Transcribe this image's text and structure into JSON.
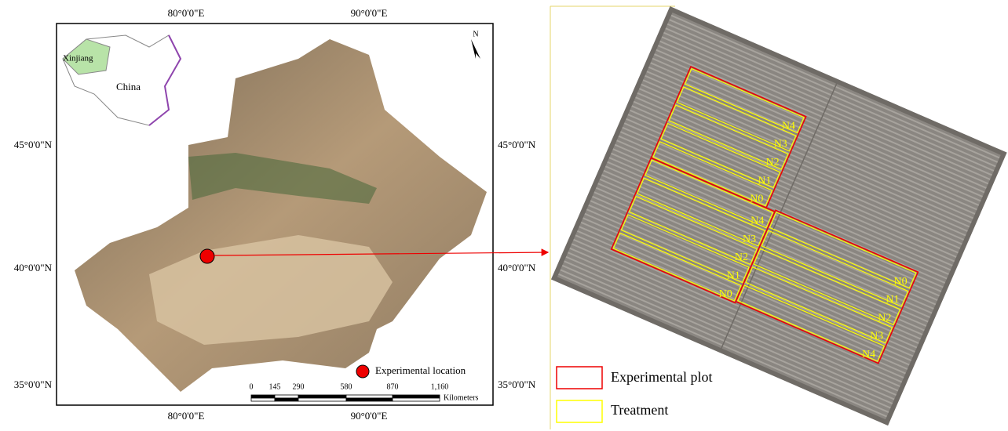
{
  "map": {
    "lon_labels": [
      "80°0'0\"E",
      "90°0'0\"E"
    ],
    "lat_labels": [
      "45°0'0\"N",
      "40°0'0\"N",
      "35°0'0\"N"
    ],
    "north": "N",
    "inset": {
      "region": "Xinjiang",
      "country": "China"
    },
    "legend": "Experimental location",
    "scale": {
      "ticks": [
        "0",
        "145",
        "290",
        "580",
        "870",
        "1,160"
      ],
      "unit": "Kilometers"
    }
  },
  "field": {
    "plots": [
      {
        "labels": [
          "N4",
          "N3",
          "N2",
          "N1",
          "N0"
        ]
      },
      {
        "labels": [
          "N4",
          "N3",
          "N2",
          "N1",
          "N0"
        ]
      },
      {
        "labels": [
          "N0",
          "N1",
          "N2",
          "N3",
          "N4"
        ]
      }
    ],
    "legend": [
      "Experimental plot",
      "Treatment"
    ]
  }
}
